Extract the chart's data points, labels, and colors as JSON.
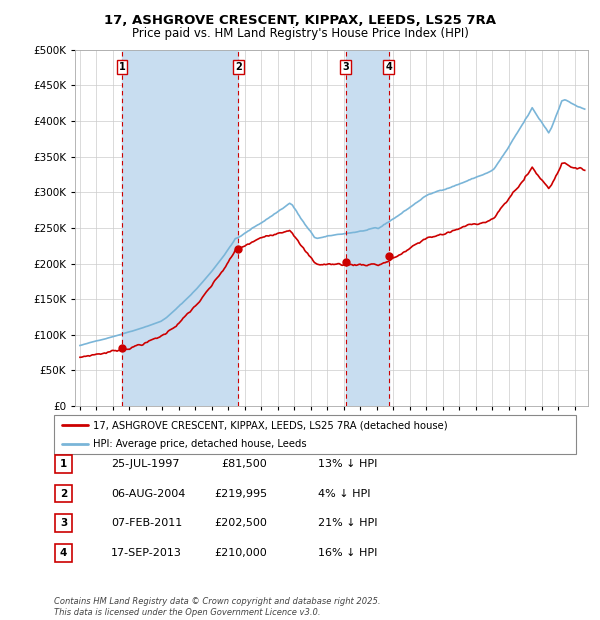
{
  "title": "17, ASHGROVE CRESCENT, KIPPAX, LEEDS, LS25 7RA",
  "subtitle": "Price paid vs. HM Land Registry's House Price Index (HPI)",
  "legend_line1": "17, ASHGROVE CRESCENT, KIPPAX, LEEDS, LS25 7RA (detached house)",
  "legend_line2": "HPI: Average price, detached house, Leeds",
  "footer_line1": "Contains HM Land Registry data © Crown copyright and database right 2025.",
  "footer_line2": "This data is licensed under the Open Government Licence v3.0.",
  "transactions": [
    {
      "label": "1",
      "date": "25-JUL-1997",
      "price": 81500,
      "pct": "13%",
      "direction": "↓",
      "x_year": 1997.56
    },
    {
      "label": "2",
      "date": "06-AUG-2004",
      "price": 219995,
      "pct": "4%",
      "direction": "↓",
      "x_year": 2004.6
    },
    {
      "label": "3",
      "date": "07-FEB-2011",
      "price": 202500,
      "pct": "21%",
      "direction": "↓",
      "x_year": 2011.1
    },
    {
      "label": "4",
      "date": "17-SEP-2013",
      "price": 210000,
      "pct": "16%",
      "direction": "↓",
      "x_year": 2013.71
    }
  ],
  "hpi_color": "#7ab5d8",
  "price_color": "#cc0000",
  "dashed_color": "#cc0000",
  "shade_color": "#c8ddf0",
  "background_color": "#ffffff",
  "plot_bg_color": "#ffffff",
  "grid_color": "#cccccc",
  "ylim": [
    0,
    500000
  ],
  "yticks": [
    0,
    50000,
    100000,
    150000,
    200000,
    250000,
    300000,
    350000,
    400000,
    450000,
    500000
  ],
  "xlim_start": 1994.7,
  "xlim_end": 2025.8,
  "xticks": [
    1995,
    1996,
    1997,
    1998,
    1999,
    2000,
    2001,
    2002,
    2003,
    2004,
    2005,
    2006,
    2007,
    2008,
    2009,
    2010,
    2011,
    2012,
    2013,
    2014,
    2015,
    2016,
    2017,
    2018,
    2019,
    2020,
    2021,
    2022,
    2023,
    2024,
    2025
  ]
}
